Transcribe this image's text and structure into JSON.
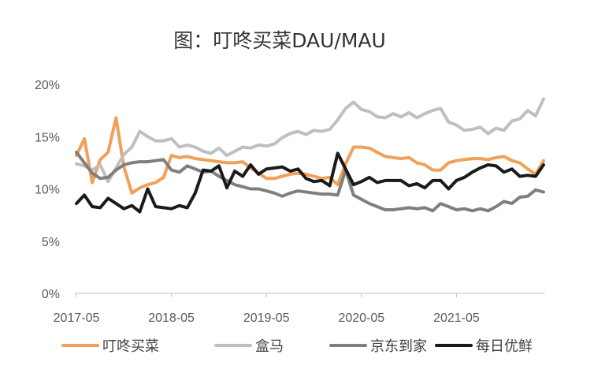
{
  "chart_data": {
    "type": "line",
    "title": "图：叮咚买菜DAU/MAU",
    "xlabel": "",
    "ylabel": "",
    "x_tick_labels": [
      "2017-05",
      "2018-05",
      "2019-05",
      "2020-05",
      "2021-05"
    ],
    "y_tick_labels": [
      "0%",
      "5%",
      "10%",
      "15%",
      "20%"
    ],
    "ylim": [
      0,
      20
    ],
    "x_range_months": [
      0,
      58
    ],
    "grid": false,
    "legend_position": "bottom",
    "series": [
      {
        "name": "叮咚买菜",
        "color": "#F0A05A",
        "values": [
          13.2,
          14.8,
          10.6,
          12.8,
          13.5,
          16.8,
          12.1,
          9.6,
          10.1,
          10.4,
          10.6,
          11.1,
          13.2,
          13.0,
          13.1,
          12.9,
          12.8,
          12.7,
          12.6,
          12.5,
          12.5,
          12.6,
          12.0,
          11.5,
          11.0,
          11.0,
          11.2,
          11.4,
          11.5,
          11.4,
          11.2,
          11.0,
          11.1,
          10.4,
          12.4,
          14.0,
          14.0,
          13.9,
          13.5,
          13.1,
          13.0,
          12.9,
          13.0,
          12.5,
          12.3,
          11.8,
          11.8,
          12.5,
          12.7,
          12.8,
          12.9,
          12.9,
          12.8,
          13.0,
          13.1,
          12.7,
          12.5,
          11.9,
          11.4,
          12.7
        ],
        "x_offset": 0
      },
      {
        "name": "盒马",
        "color": "#BFBFBF",
        "values": [
          12.4,
          12.2,
          11.8,
          12.3,
          10.7,
          12.0,
          13.3,
          14.0,
          15.5,
          15.0,
          14.6,
          14.6,
          14.8,
          14.0,
          14.2,
          14.0,
          13.6,
          13.4,
          13.9,
          13.2,
          13.6,
          14.0,
          13.9,
          14.2,
          14.1,
          14.3,
          14.9,
          15.3,
          15.5,
          15.2,
          15.6,
          15.5,
          15.7,
          16.6,
          17.7,
          18.3,
          17.6,
          17.4,
          16.9,
          16.8,
          17.2,
          16.9,
          17.3,
          16.8,
          17.2,
          17.5,
          17.7,
          16.4,
          16.1,
          15.6,
          15.7,
          15.9,
          15.3,
          15.8,
          15.6,
          16.5,
          16.7,
          17.5,
          17.0,
          18.6
        ],
        "x_offset": 0
      },
      {
        "name": "京东到家",
        "color": "#7F7F7F",
        "values": [
          13.5,
          12.5,
          11.5,
          11.0,
          11.1,
          11.8,
          12.3,
          12.5,
          12.6,
          12.6,
          12.7,
          12.8,
          11.8,
          11.6,
          12.2,
          11.9,
          11.6,
          11.7,
          11.2,
          10.8,
          10.4,
          10.2,
          10.0,
          10.0,
          9.8,
          9.6,
          9.3,
          9.6,
          9.8,
          9.7,
          9.6,
          9.5,
          9.5,
          9.4,
          11.8,
          9.4,
          9.0,
          8.6,
          8.3,
          8.0,
          8.0,
          8.1,
          8.2,
          8.1,
          8.2,
          7.9,
          8.6,
          8.3,
          8.0,
          8.1,
          7.9,
          8.1,
          7.9,
          8.3,
          8.8,
          8.6,
          9.2,
          9.3,
          9.9,
          9.7
        ],
        "x_offset": 0
      },
      {
        "name": "每日优鲜",
        "color": "#1A1A1A",
        "values": [
          8.6,
          9.4,
          8.3,
          8.2,
          9.1,
          8.6,
          8.1,
          8.4,
          7.8,
          10.0,
          8.3,
          8.2,
          8.1,
          8.4,
          8.2,
          9.6,
          11.8,
          11.7,
          12.2,
          10.1,
          11.7,
          11.2,
          12.3,
          11.4,
          11.9,
          12.0,
          12.1,
          11.7,
          11.9,
          11.0,
          10.7,
          10.8,
          10.3,
          13.4,
          11.9,
          10.4,
          10.7,
          11.1,
          10.6,
          10.8,
          10.8,
          10.8,
          10.3,
          10.5,
          10.1,
          10.8,
          10.8,
          10.0,
          10.8,
          11.1,
          11.6,
          12.0,
          12.3,
          12.2,
          11.6,
          11.9,
          11.2,
          11.3,
          11.2,
          12.3
        ],
        "x_offset": 0
      }
    ]
  }
}
